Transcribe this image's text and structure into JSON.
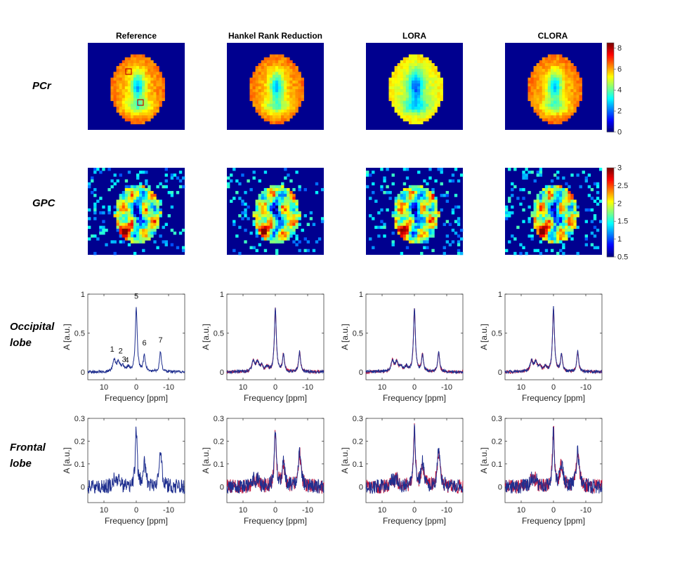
{
  "column_titles": [
    "Reference",
    "Hankel Rank Reduction",
    "LORA",
    "CLORA"
  ],
  "row_labels": {
    "pcr": "PCr",
    "gpc": "GPC",
    "occipital": [
      "Occipital",
      "lobe"
    ],
    "frontal": [
      "Frontal",
      "lobe"
    ]
  },
  "colors": {
    "reference_line": "#1f2f8f",
    "fit_line": "#c0143c",
    "map_background": "#00008f"
  },
  "colormap": "jet",
  "chart_data": [
    {
      "type": "heatmap",
      "row": "PCr",
      "panels": [
        "Reference",
        "Hankel Rank Reduction",
        "LORA",
        "CLORA"
      ],
      "colorbar": {
        "range": [
          0,
          8.5
        ],
        "ticks": [
          "0",
          "2",
          "4",
          "6",
          "8"
        ]
      },
      "roi_markers": [
        "frontal ROI square",
        "occipital ROI square"
      ]
    },
    {
      "type": "heatmap",
      "row": "GPC",
      "panels": [
        "Reference",
        "Hankel Rank Reduction",
        "LORA",
        "CLORA"
      ],
      "colorbar": {
        "range": [
          0.5,
          3
        ],
        "ticks": [
          "0.5",
          "1",
          "1.5",
          "2",
          "2.5",
          "3"
        ]
      }
    },
    {
      "type": "line",
      "row": "Occipital lobe",
      "xlabel": "Frequency [ppm]",
      "ylabel": "A [a.u.]",
      "xlim": [
        15,
        -15
      ],
      "ylim": [
        -0.1,
        1.0
      ],
      "xticks": [
        "10",
        "0",
        "-10"
      ],
      "yticks": [
        "0",
        "0.5",
        "1"
      ],
      "peaks": [
        {
          "label": "1",
          "ppm": 6.8,
          "amp": 0.14
        },
        {
          "label": "2",
          "ppm": 5.5,
          "amp": 0.12
        },
        {
          "label": "3",
          "ppm": 4.2,
          "amp": 0.07
        },
        {
          "label": "4",
          "ppm": 2.5,
          "amp": 0.06
        },
        {
          "label": "5",
          "ppm": 0.0,
          "amp": 0.82
        },
        {
          "label": "6",
          "ppm": -2.5,
          "amp": 0.22
        },
        {
          "label": "7",
          "ppm": -7.5,
          "amp": 0.26
        }
      ],
      "noise": 0.012
    },
    {
      "type": "line",
      "row": "Frontal lobe",
      "xlabel": "Frequency [ppm]",
      "ylabel": "A [a.u.]",
      "xlim": [
        15,
        -15
      ],
      "ylim": [
        -0.07,
        0.3
      ],
      "xticks": [
        "10",
        "0",
        "-10"
      ],
      "yticks": [
        "0",
        "0.1",
        "0.2",
        "0.3"
      ],
      "peaks": [
        {
          "ppm": 6.8,
          "amp": 0.03
        },
        {
          "ppm": 5.5,
          "amp": 0.03
        },
        {
          "ppm": 0.0,
          "amp": 0.25
        },
        {
          "ppm": -2.5,
          "amp": 0.1
        },
        {
          "ppm": -7.5,
          "amp": 0.15
        }
      ],
      "noise": 0.02
    }
  ]
}
